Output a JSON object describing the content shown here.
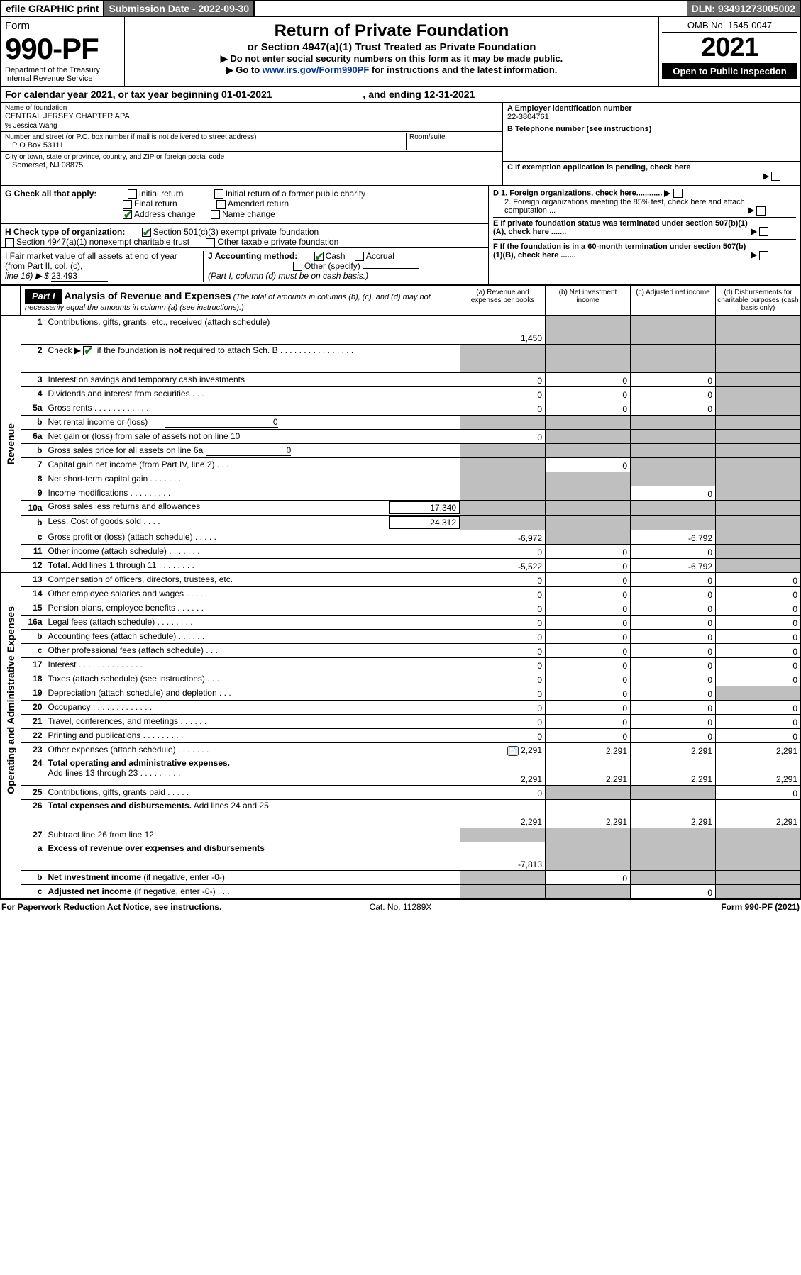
{
  "header": {
    "efile": "efile GRAPHIC print",
    "submission": "Submission Date - 2022-09-30",
    "dln": "DLN: 93491273005002"
  },
  "formHeader": {
    "formWord": "Form",
    "formNo": "990-PF",
    "dept": "Department of the Treasury",
    "irs": "Internal Revenue Service",
    "title": "Return of Private Foundation",
    "subtitle": "or Section 4947(a)(1) Trust Treated as Private Foundation",
    "instr1": "▶ Do not enter social security numbers on this form as it may be made public.",
    "instr2p": "▶ Go to ",
    "instr2link": "www.irs.gov/Form990PF",
    "instr2s": " for instructions and the latest information.",
    "omb": "OMB No. 1545-0047",
    "year": "2021",
    "open": "Open to Public Inspection"
  },
  "yearLine": {
    "p1": "For calendar year 2021, or tax year beginning 01-01-2021",
    "p2": ", and ending 12-31-2021"
  },
  "id": {
    "nameLbl": "Name of foundation",
    "name": "CENTRAL JERSEY CHAPTER APA",
    "pct": "% Jessica Wang",
    "addrLbl": "Number and street (or P.O. box number if mail is not delivered to street address)",
    "addr": "P O Box 53111",
    "roomLbl": "Room/suite",
    "cityLbl": "City or town, state or province, country, and ZIP or foreign postal code",
    "city": "Somerset, NJ  08875",
    "aLbl": "A Employer identification number",
    "a": "22-3804761",
    "bLbl": "B Telephone number (see instructions)",
    "c": "C  If exemption application is pending, check here",
    "d1": "D 1. Foreign organizations, check here............",
    "d2": "2. Foreign organizations meeting the 85% test, check here and attach computation ...",
    "e": "E  If private foundation status was terminated under section 507(b)(1)(A), check here .......",
    "f": "F  If the foundation is in a 60-month termination under section 507(b)(1)(B), check here .......",
    "g": "G Check all that apply:",
    "gInitial": "Initial return",
    "gInitialFormer": "Initial return of a former public charity",
    "gFinal": "Final return",
    "gAmended": "Amended return",
    "gAddr": "Address change",
    "gName": "Name change",
    "h": "H Check type of organization:",
    "h501": "Section 501(c)(3) exempt private foundation",
    "h4947": "Section 4947(a)(1) nonexempt charitable trust",
    "hOther": "Other taxable private foundation",
    "i": "I Fair market value of all assets at end of year (from Part II, col. (c),",
    "iLine": "line 16) ▶ $ ",
    "iVal": "23,493",
    "j": "J Accounting method:",
    "jCash": "Cash",
    "jAccrual": "Accrual",
    "jOther": "Other (specify)",
    "jNote": "(Part I, column (d) must be on cash basis.)"
  },
  "part1": {
    "label": "Part I",
    "title": "Analysis of Revenue and Expenses",
    "titleNote": " (The total of amounts in columns (b), (c), and (d) may not necessarily equal the amounts in column (a) (see instructions).)",
    "colA": "(a)   Revenue and expenses per books",
    "colB": "(b)   Net investment income",
    "colC": "(c)   Adjusted net income",
    "colD": "(d)   Disbursements for charitable purposes (cash basis only)",
    "revLabel": "Revenue",
    "opLabel": "Operating and Administrative Expenses"
  },
  "rows": [
    {
      "n": "1",
      "d": "",
      "a": "1,450",
      "b": "",
      "c": "",
      "bG": true,
      "cG": true,
      "dG": true,
      "tall": true
    },
    {
      "n": "2",
      "d": "",
      "a": "",
      "b": "",
      "c": "",
      "aG": true,
      "bG": true,
      "cG": true,
      "dG": true,
      "tall": true
    },
    {
      "n": "3",
      "d": "",
      "a": "0",
      "b": "0",
      "c": "0",
      "dG": true
    },
    {
      "n": "4",
      "d": "",
      "a": "0",
      "b": "0",
      "c": "0",
      "dG": true
    },
    {
      "n": "5a",
      "d": "",
      "a": "0",
      "b": "0",
      "c": "0",
      "dG": true
    },
    {
      "n": "b",
      "d": "",
      "a": "",
      "b": "",
      "c": "",
      "aG": true,
      "bG": true,
      "cG": true,
      "dG": true
    },
    {
      "n": "6a",
      "d": "",
      "a": "0",
      "b": "",
      "c": "",
      "bG": true,
      "cG": true,
      "dG": true
    },
    {
      "n": "b",
      "d": "",
      "a": "",
      "b": "",
      "c": "",
      "aG": true,
      "bG": true,
      "cG": true,
      "dG": true
    },
    {
      "n": "7",
      "d": "",
      "a": "",
      "b": "0",
      "c": "",
      "aG": true,
      "cG": true,
      "dG": true
    },
    {
      "n": "8",
      "d": "",
      "a": "",
      "b": "",
      "c": "",
      "aG": true,
      "bG": true,
      "cG": true,
      "dG": true
    },
    {
      "n": "9",
      "d": "",
      "a": "",
      "b": "",
      "c": "0",
      "aG": true,
      "bG": true,
      "dG": true
    },
    {
      "n": "10a",
      "d": "",
      "a": "",
      "b": "",
      "c": "",
      "aG": true,
      "bG": true,
      "cG": true,
      "dG": true
    },
    {
      "n": "b",
      "d": "",
      "a": "",
      "b": "",
      "c": "",
      "aG": true,
      "bG": true,
      "cG": true,
      "dG": true
    },
    {
      "n": "c",
      "d": "",
      "a": "-6,972",
      "b": "",
      "c": "-6,792",
      "bG": true,
      "dG": true
    },
    {
      "n": "11",
      "d": "",
      "a": "0",
      "b": "0",
      "c": "0",
      "dG": true
    },
    {
      "n": "12",
      "d": "",
      "a": "-5,522",
      "b": "0",
      "c": "-6,792",
      "dG": true,
      "bold": true
    },
    {
      "n": "13",
      "d": "0",
      "a": "0",
      "b": "0",
      "c": "0"
    },
    {
      "n": "14",
      "d": "0",
      "a": "0",
      "b": "0",
      "c": "0"
    },
    {
      "n": "15",
      "d": "0",
      "a": "0",
      "b": "0",
      "c": "0"
    },
    {
      "n": "16a",
      "d": "0",
      "a": "0",
      "b": "0",
      "c": "0"
    },
    {
      "n": "b",
      "d": "0",
      "a": "0",
      "b": "0",
      "c": "0"
    },
    {
      "n": "c",
      "d": "0",
      "a": "0",
      "b": "0",
      "c": "0"
    },
    {
      "n": "17",
      "d": "0",
      "a": "0",
      "b": "0",
      "c": "0"
    },
    {
      "n": "18",
      "d": "0",
      "a": "0",
      "b": "0",
      "c": "0"
    },
    {
      "n": "19",
      "d": "",
      "a": "0",
      "b": "0",
      "c": "0",
      "dG": true
    },
    {
      "n": "20",
      "d": "0",
      "a": "0",
      "b": "0",
      "c": "0"
    },
    {
      "n": "21",
      "d": "0",
      "a": "0",
      "b": "0",
      "c": "0"
    },
    {
      "n": "22",
      "d": "0",
      "a": "0",
      "b": "0",
      "c": "0"
    },
    {
      "n": "23",
      "d": "2,291",
      "a": "2,291",
      "b": "2,291",
      "c": "2,291",
      "icon": true
    },
    {
      "n": "24",
      "d": "2,291",
      "a": "2,291",
      "b": "2,291",
      "c": "2,291",
      "tall": true
    },
    {
      "n": "25",
      "d": "0",
      "a": "0",
      "b": "",
      "c": "",
      "bG": true,
      "cG": true
    },
    {
      "n": "26",
      "d": "2,291",
      "a": "2,291",
      "b": "2,291",
      "c": "2,291",
      "tall": true
    },
    {
      "n": "27",
      "d": "",
      "a": "",
      "b": "",
      "c": "",
      "aG": true,
      "bG": true,
      "cG": true,
      "dG": true
    },
    {
      "n": "a",
      "d": "",
      "a": "-7,813",
      "b": "",
      "c": "",
      "bG": true,
      "cG": true,
      "dG": true,
      "tall": true
    },
    {
      "n": "b",
      "d": "",
      "a": "",
      "b": "0",
      "c": "",
      "aG": true,
      "cG": true,
      "dG": true
    },
    {
      "n": "c",
      "d": "",
      "a": "",
      "b": "",
      "c": "0",
      "aG": true,
      "bG": true,
      "dG": true
    }
  ],
  "footer": {
    "left": "For Paperwork Reduction Act Notice, see instructions.",
    "mid": "Cat. No. 11289X",
    "right": "Form 990-PF (2021)"
  }
}
